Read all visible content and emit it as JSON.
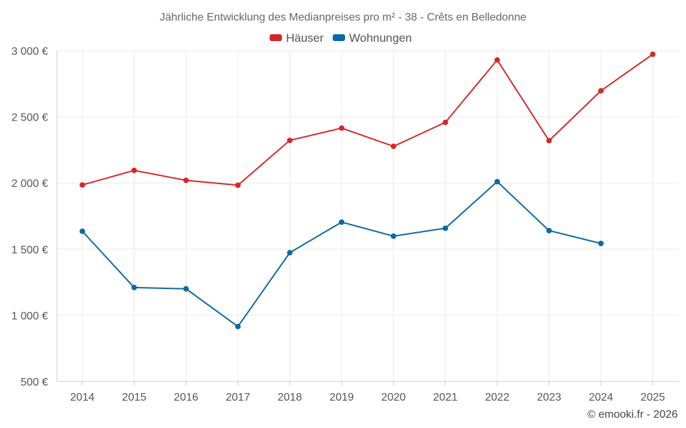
{
  "chart_data": {
    "type": "line",
    "title": "Jährliche Entwicklung des Medianpreises pro m² - 38 - Crêts en Belledonne",
    "categories": [
      "2014",
      "2015",
      "2016",
      "2017",
      "2018",
      "2019",
      "2020",
      "2021",
      "2022",
      "2023",
      "2024",
      "2025"
    ],
    "series": [
      {
        "name": "Häuser",
        "color": "#d62728",
        "values": [
          1985,
          2095,
          2020,
          1983,
          2322,
          2415,
          2277,
          2458,
          2930,
          2320,
          2697,
          2973
        ]
      },
      {
        "name": "Wohnungen",
        "color": "#0a6aa1",
        "values": [
          1635,
          1210,
          1200,
          915,
          1473,
          1704,
          1598,
          1658,
          2010,
          1640,
          1543,
          null
        ]
      }
    ],
    "ylim": [
      500,
      3000
    ],
    "yticks": [
      500,
      1000,
      1500,
      2000,
      2500,
      3000
    ],
    "ytick_labels": [
      "500 €",
      "1 000 €",
      "1 500 €",
      "2 000 €",
      "2 500 €",
      "3 000 €"
    ],
    "xlabel": "",
    "ylabel": "",
    "grid": true,
    "legend_position": "top-center"
  },
  "credit": "© emooki.fr - 2026"
}
